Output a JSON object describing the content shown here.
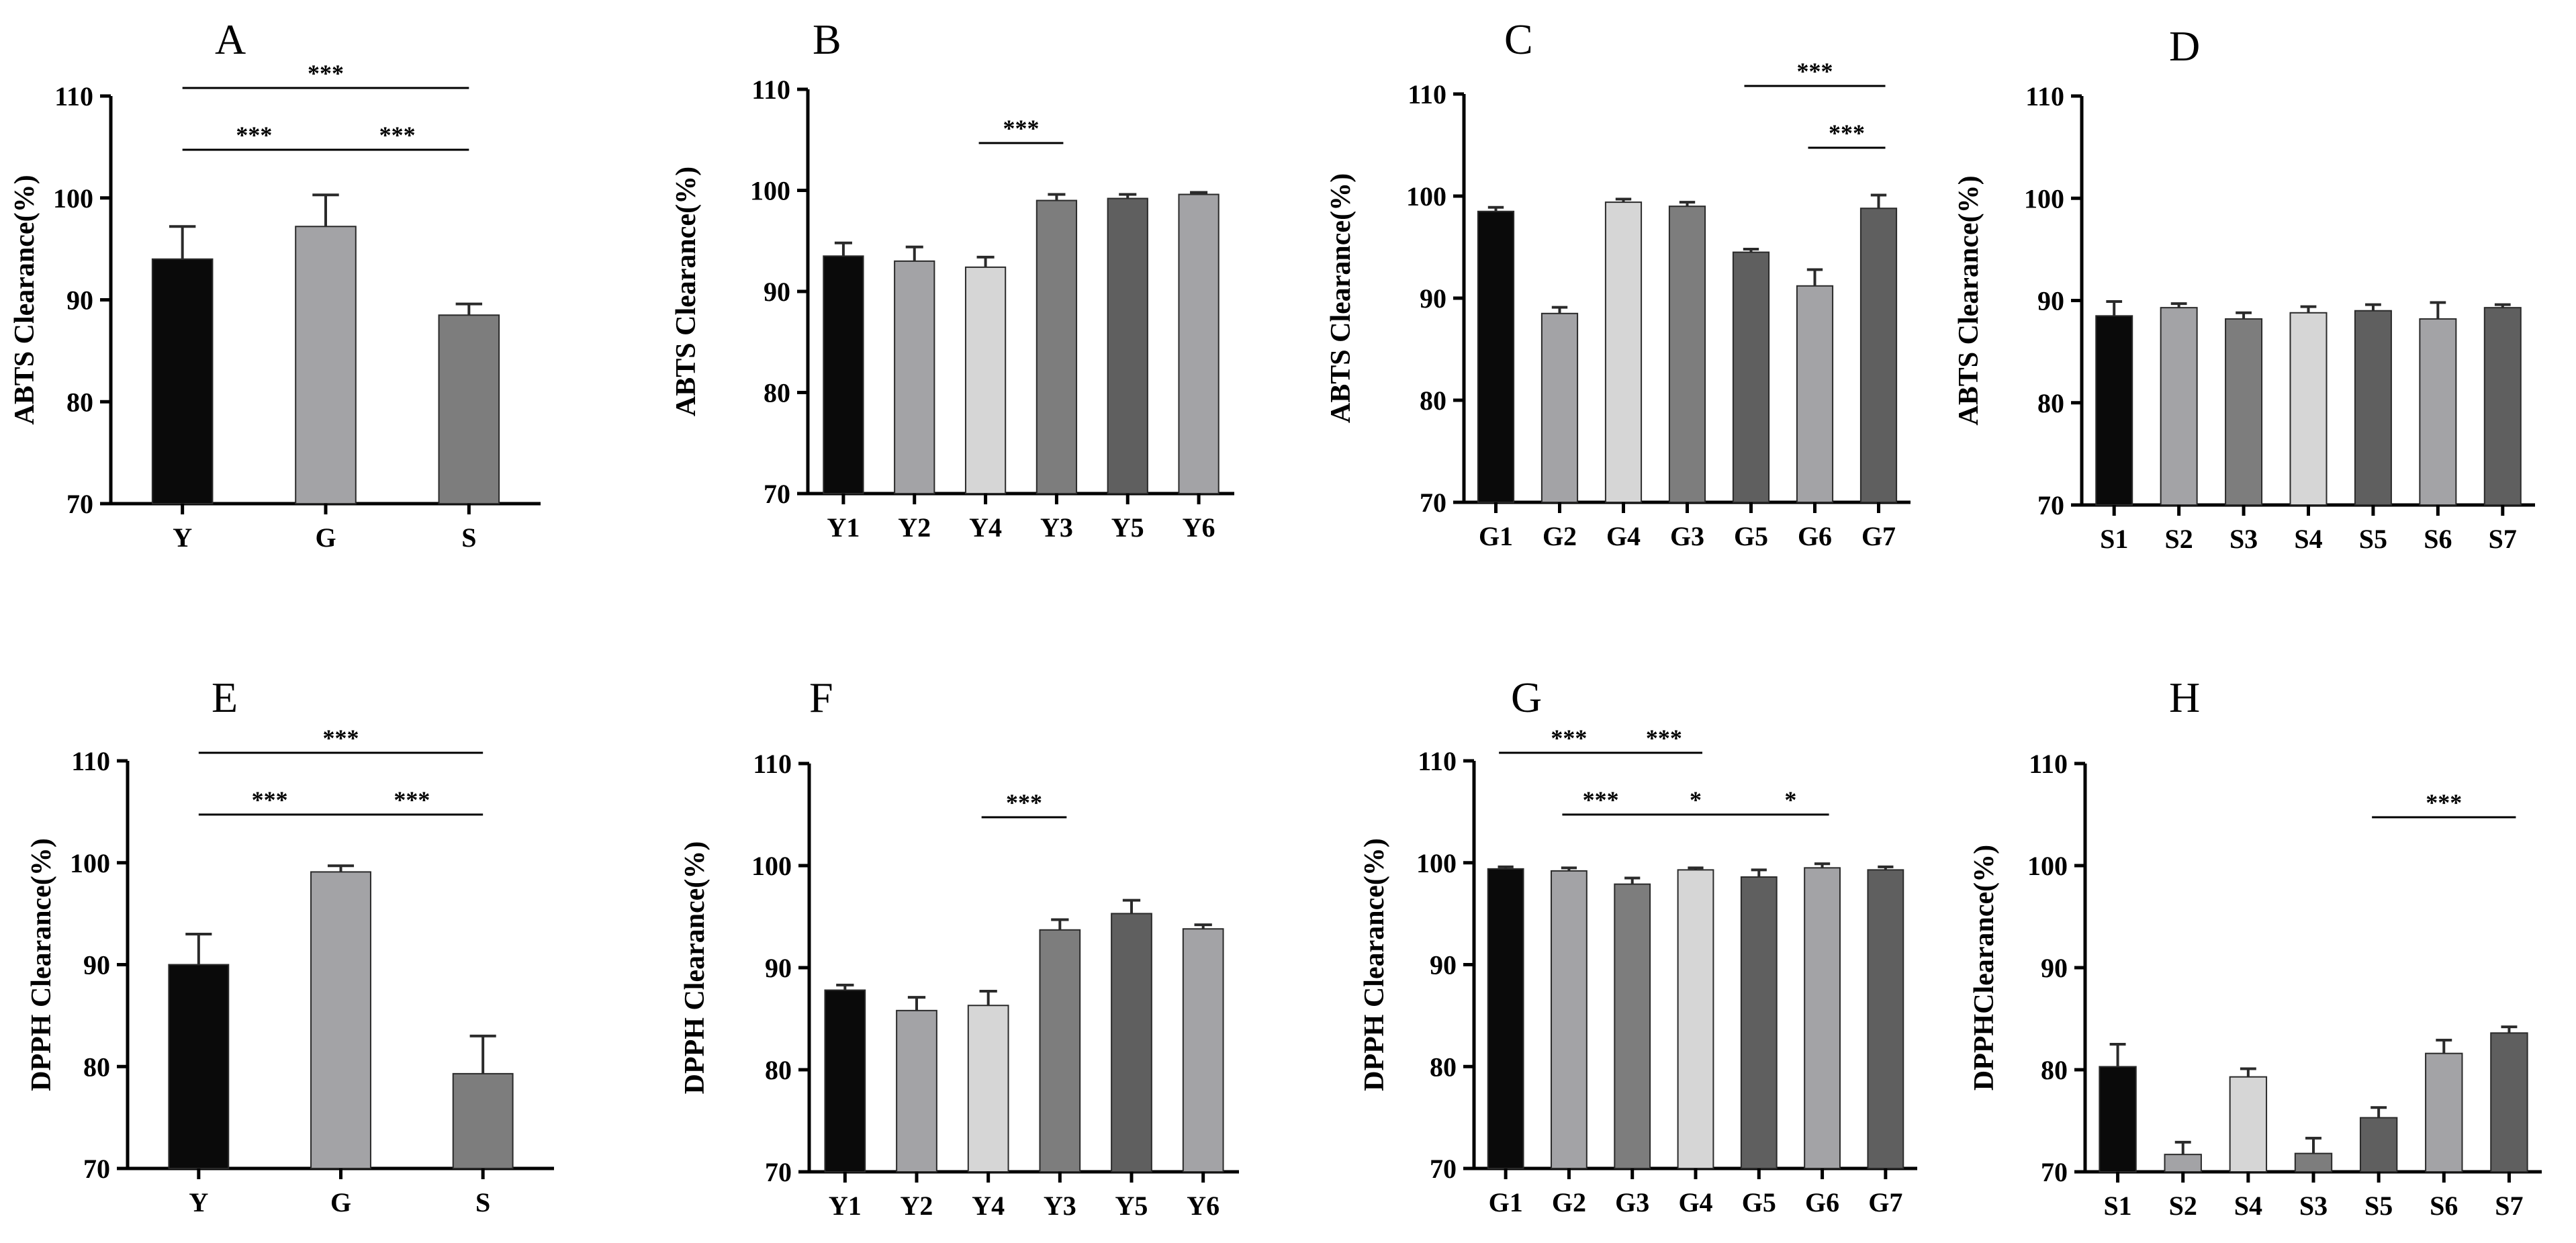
{
  "chart_data": [
    {
      "type": "bar",
      "panel": "A",
      "ylabel": "ABTS Clearance(%)",
      "ylim": [
        70,
        110
      ],
      "yticks": [
        70,
        80,
        90,
        100,
        110
      ],
      "categories": [
        "Y",
        "G",
        "S"
      ],
      "values": [
        94.0,
        97.2,
        88.5
      ],
      "errors": [
        3.2,
        3.1,
        1.1
      ],
      "colors": [
        "#0a0a0a",
        "#a3a3a6",
        "#7d7d7d"
      ],
      "significance": [
        {
          "from": 0,
          "to": 2,
          "label": "***",
          "level": 2
        },
        {
          "from": 0,
          "to": 1,
          "label": "***",
          "level": 1
        },
        {
          "from": 1,
          "to": 2,
          "label": "***",
          "level": 1
        }
      ]
    },
    {
      "type": "bar",
      "panel": "B",
      "ylabel": "ABTS Clearance(%)",
      "ylim": [
        70,
        110
      ],
      "yticks": [
        70,
        80,
        90,
        100,
        110
      ],
      "categories": [
        "Y1",
        "Y2",
        "Y4",
        "Y3",
        "Y5",
        "Y6"
      ],
      "values": [
        93.5,
        93.0,
        92.4,
        99.0,
        99.2,
        99.6
      ],
      "errors": [
        1.3,
        1.4,
        1.0,
        0.6,
        0.4,
        0.2
      ],
      "colors": [
        "#0a0a0a",
        "#a3a3a6",
        "#d6d6d6",
        "#7d7d7d",
        "#5f5f5f",
        "#a3a3a6"
      ],
      "significance": [
        {
          "from": 2,
          "to": 3,
          "label": "***",
          "level": 1
        }
      ]
    },
    {
      "type": "bar",
      "panel": "C",
      "ylabel": "ABTS Clearance(%)",
      "ylim": [
        70,
        110
      ],
      "yticks": [
        70,
        80,
        90,
        100,
        110
      ],
      "categories": [
        "G1",
        "G2",
        "G4",
        "G3",
        "G5",
        "G6",
        "G7"
      ],
      "values": [
        98.5,
        88.5,
        99.4,
        99.0,
        94.5,
        91.2,
        98.8
      ],
      "errors": [
        0.4,
        0.6,
        0.3,
        0.4,
        0.3,
        1.6,
        1.3
      ],
      "colors": [
        "#0a0a0a",
        "#a3a3a6",
        "#d6d6d6",
        "#7d7d7d",
        "#5f5f5f",
        "#a3a3a6",
        "#5f5f5f"
      ],
      "significance": [
        {
          "from": 4,
          "to": 6,
          "label": "***",
          "level": 2
        },
        {
          "from": 5,
          "to": 6,
          "label": "***",
          "level": 1
        }
      ]
    },
    {
      "type": "bar",
      "panel": "D",
      "ylabel": "ABTS Clearance(%)",
      "ylim": [
        70,
        110
      ],
      "yticks": [
        70,
        80,
        90,
        100,
        110
      ],
      "categories": [
        "S1",
        "S2",
        "S3",
        "S4",
        "S5",
        "S6",
        "S7"
      ],
      "values": [
        88.5,
        89.3,
        88.2,
        88.8,
        89.0,
        88.2,
        89.3
      ],
      "errors": [
        1.4,
        0.4,
        0.6,
        0.6,
        0.6,
        1.6,
        0.3
      ],
      "colors": [
        "#0a0a0a",
        "#a3a3a6",
        "#7d7d7d",
        "#d6d6d6",
        "#5f5f5f",
        "#a3a3a6",
        "#5f5f5f"
      ],
      "significance": []
    },
    {
      "type": "bar",
      "panel": "E",
      "ylabel": "DPPH Clearance(%)",
      "ylim": [
        70,
        110
      ],
      "yticks": [
        70,
        80,
        90,
        100,
        110
      ],
      "categories": [
        "Y",
        "G",
        "S"
      ],
      "values": [
        90.0,
        99.1,
        79.3
      ],
      "errors": [
        3.0,
        0.6,
        3.7
      ],
      "colors": [
        "#0a0a0a",
        "#a3a3a6",
        "#7d7d7d"
      ],
      "significance": [
        {
          "from": 0,
          "to": 2,
          "label": "***",
          "level": 2
        },
        {
          "from": 0,
          "to": 1,
          "label": "***",
          "level": 1
        },
        {
          "from": 1,
          "to": 2,
          "label": "***",
          "level": 1
        }
      ]
    },
    {
      "type": "bar",
      "panel": "F",
      "ylabel": "DPPH Clearance(%)",
      "ylim": [
        70,
        110
      ],
      "yticks": [
        70,
        80,
        90,
        100,
        110
      ],
      "categories": [
        "Y1",
        "Y2",
        "Y4",
        "Y3",
        "Y5",
        "Y6"
      ],
      "values": [
        87.8,
        85.8,
        86.3,
        93.7,
        95.3,
        93.8
      ],
      "errors": [
        0.5,
        1.3,
        1.4,
        1.0,
        1.3,
        0.4
      ],
      "colors": [
        "#0a0a0a",
        "#a3a3a6",
        "#d6d6d6",
        "#7d7d7d",
        "#5f5f5f",
        "#a3a3a6"
      ],
      "significance": [
        {
          "from": 2,
          "to": 3,
          "label": "***",
          "level": 1
        }
      ]
    },
    {
      "type": "bar",
      "panel": "G",
      "ylabel": "DPPH Clearance(%)",
      "ylim": [
        70,
        110
      ],
      "yticks": [
        70,
        80,
        90,
        100,
        110
      ],
      "categories": [
        "G1",
        "G2",
        "G3",
        "G4",
        "G5",
        "G6",
        "G7"
      ],
      "values": [
        99.4,
        99.2,
        97.9,
        99.3,
        98.6,
        99.5,
        99.3
      ],
      "errors": [
        0.2,
        0.3,
        0.6,
        0.2,
        0.7,
        0.4,
        0.3
      ],
      "colors": [
        "#0a0a0a",
        "#a3a3a6",
        "#7d7d7d",
        "#d6d6d6",
        "#5f5f5f",
        "#a3a3a6",
        "#5f5f5f"
      ],
      "significance": [
        {
          "from": 0,
          "to": 2,
          "label": "***",
          "level": 2
        },
        {
          "from": 2,
          "to": 3,
          "label": "***",
          "level": 2
        },
        {
          "from": 1,
          "to": 2,
          "label": "***",
          "level": 1
        },
        {
          "from": 2,
          "to": 4,
          "label": "*",
          "level": 1
        },
        {
          "from": 4,
          "to": 5,
          "label": "*",
          "level": 1
        }
      ]
    },
    {
      "type": "bar",
      "panel": "H",
      "ylabel": "DPPHClearance(%)",
      "ylim": [
        70,
        110
      ],
      "yticks": [
        70,
        80,
        90,
        100,
        110
      ],
      "categories": [
        "S1",
        "S2",
        "S4",
        "S3",
        "S5",
        "S6",
        "S7"
      ],
      "values": [
        80.3,
        71.7,
        79.3,
        71.8,
        75.3,
        81.6,
        83.6
      ],
      "errors": [
        2.2,
        1.2,
        0.8,
        1.5,
        1.0,
        1.3,
        0.6
      ],
      "colors": [
        "#0a0a0a",
        "#a3a3a6",
        "#d6d6d6",
        "#7d7d7d",
        "#5f5f5f",
        "#a3a3a6",
        "#5f5f5f"
      ],
      "significance": [
        {
          "from": 4,
          "to": 6,
          "label": "***",
          "level": 1
        }
      ]
    }
  ]
}
